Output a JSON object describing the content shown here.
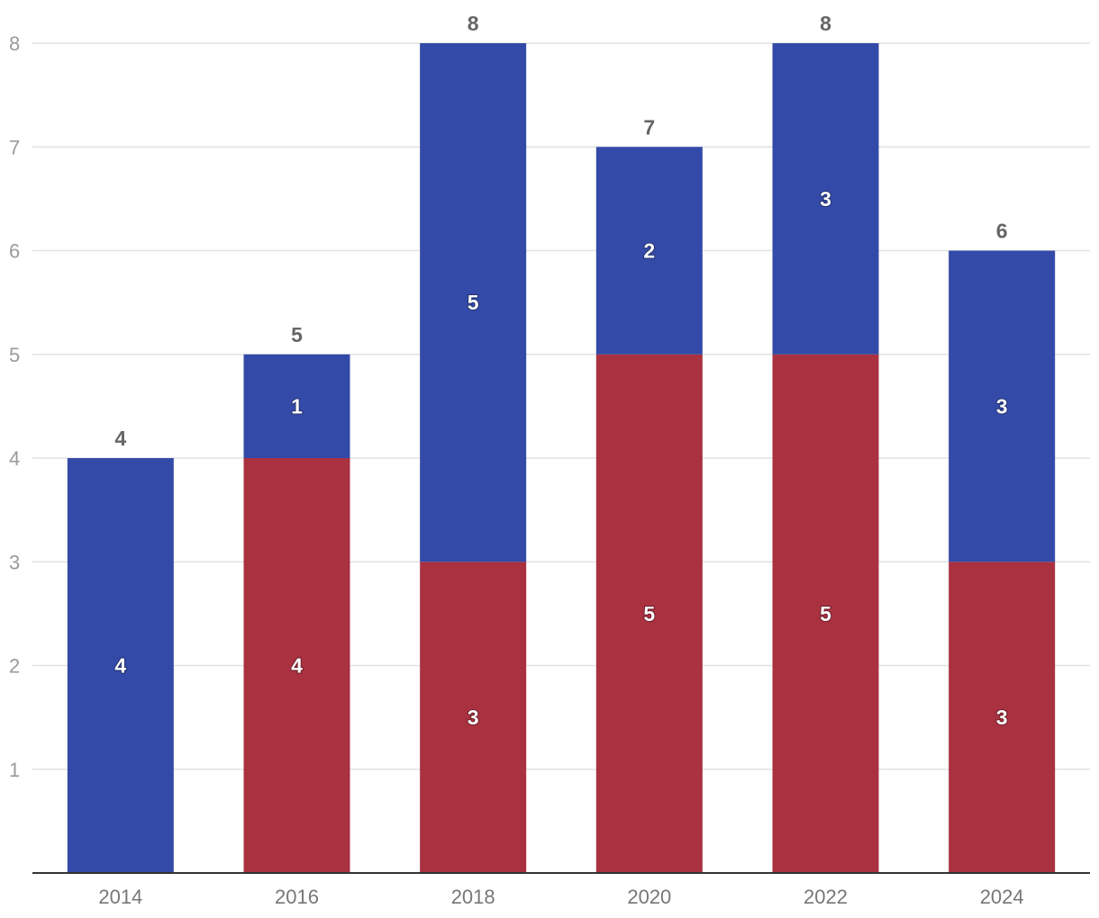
{
  "chart_data": {
    "type": "bar",
    "stacked": true,
    "categories": [
      "2014",
      "2016",
      "2018",
      "2020",
      "2022",
      "2024"
    ],
    "series": [
      {
        "values": [
          0,
          4,
          3,
          5,
          5,
          3
        ],
        "color": "#a93140"
      },
      {
        "values": [
          4,
          1,
          5,
          2,
          3,
          3
        ],
        "color": "#334aa8"
      }
    ],
    "totals": [
      4,
      5,
      8,
      7,
      8,
      6
    ],
    "ylim": [
      0,
      8
    ],
    "yticks": [
      1,
      2,
      3,
      4,
      5,
      6,
      7,
      8
    ],
    "grid": true,
    "legend": "none",
    "title": "",
    "xlabel": "",
    "ylabel": ""
  }
}
